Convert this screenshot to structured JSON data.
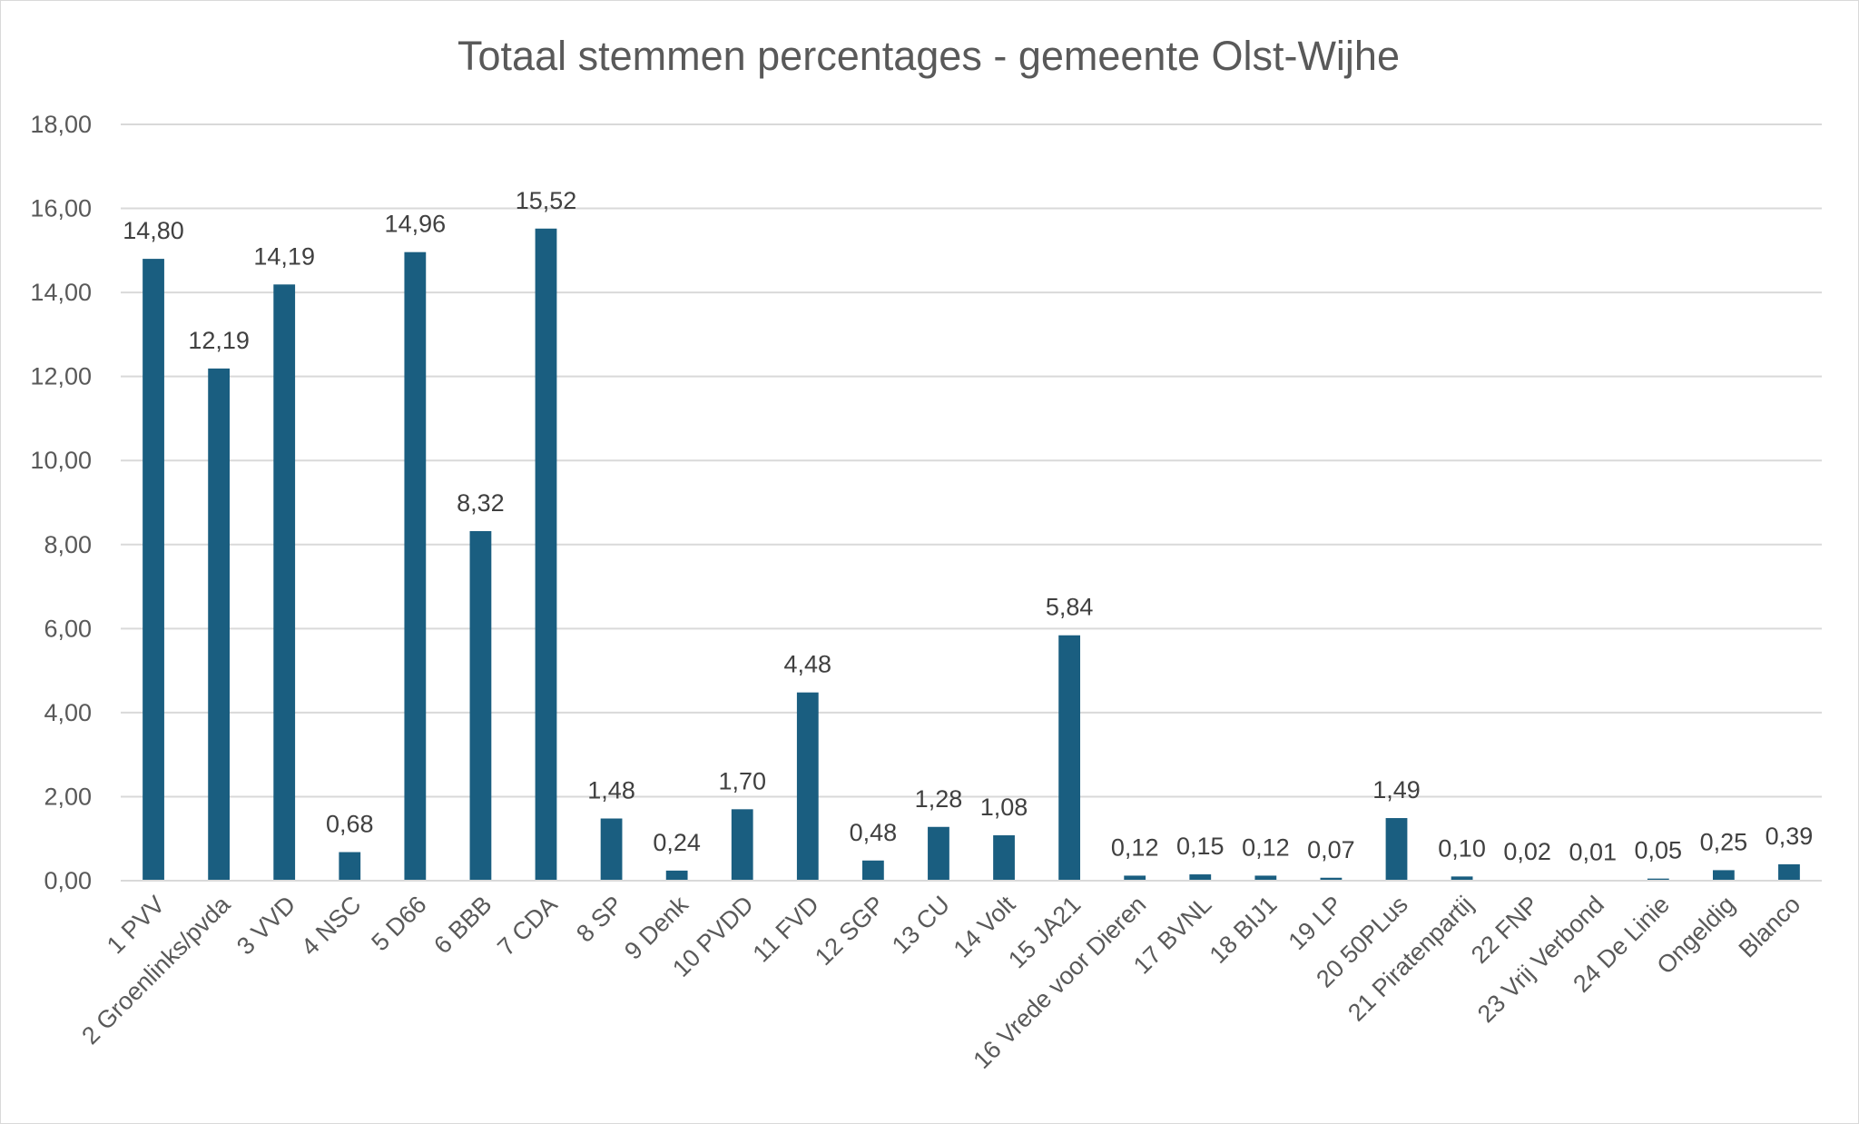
{
  "chart_data": {
    "type": "bar",
    "title": "Totaal stemmen percentages - gemeente Olst-Wijhe",
    "xlabel": "",
    "ylabel": "",
    "ylim": [
      0,
      18
    ],
    "y_ticks": [
      "0,00",
      "2,00",
      "4,00",
      "6,00",
      "8,00",
      "10,00",
      "12,00",
      "14,00",
      "16,00",
      "18,00"
    ],
    "grid": true,
    "legend": "none",
    "bar_color": "#1a5e80",
    "categories": [
      "1 PVV",
      "2 Groenlinks/pvda",
      "3 VVD",
      "4 NSC",
      "5 D66",
      "6 BBB",
      "7 CDA",
      "8 SP",
      "9 Denk",
      "10 PVDD",
      "11 FVD",
      "12 SGP",
      "13 CU",
      "14 Volt",
      "15 JA21",
      "16 Vrede voor Dieren",
      "17 BVNL",
      "18 BIJ1",
      "19 LP",
      "20 50PLus",
      "21 Piratenpartij",
      "22 FNP",
      "23 Vrij Verbond",
      "24 De Linie",
      "Ongeldig",
      "Blanco"
    ],
    "values": [
      14.8,
      12.19,
      14.19,
      0.68,
      14.96,
      8.32,
      15.52,
      1.48,
      0.24,
      1.7,
      4.48,
      0.48,
      1.28,
      1.08,
      5.84,
      0.12,
      0.15,
      0.12,
      0.07,
      1.49,
      0.1,
      0.02,
      0.01,
      0.05,
      0.25,
      0.39
    ],
    "data_labels": [
      "14,80",
      "12,19",
      "14,19",
      "0,68",
      "14,96",
      "8,32",
      "15,52",
      "1,48",
      "0,24",
      "1,70",
      "4,48",
      "0,48",
      "1,28",
      "1,08",
      "5,84",
      "0,12",
      "0,15",
      "0,12",
      "0,07",
      "1,49",
      "0,10",
      "0,02",
      "0,01",
      "0,05",
      "0,25",
      "0,39"
    ]
  }
}
